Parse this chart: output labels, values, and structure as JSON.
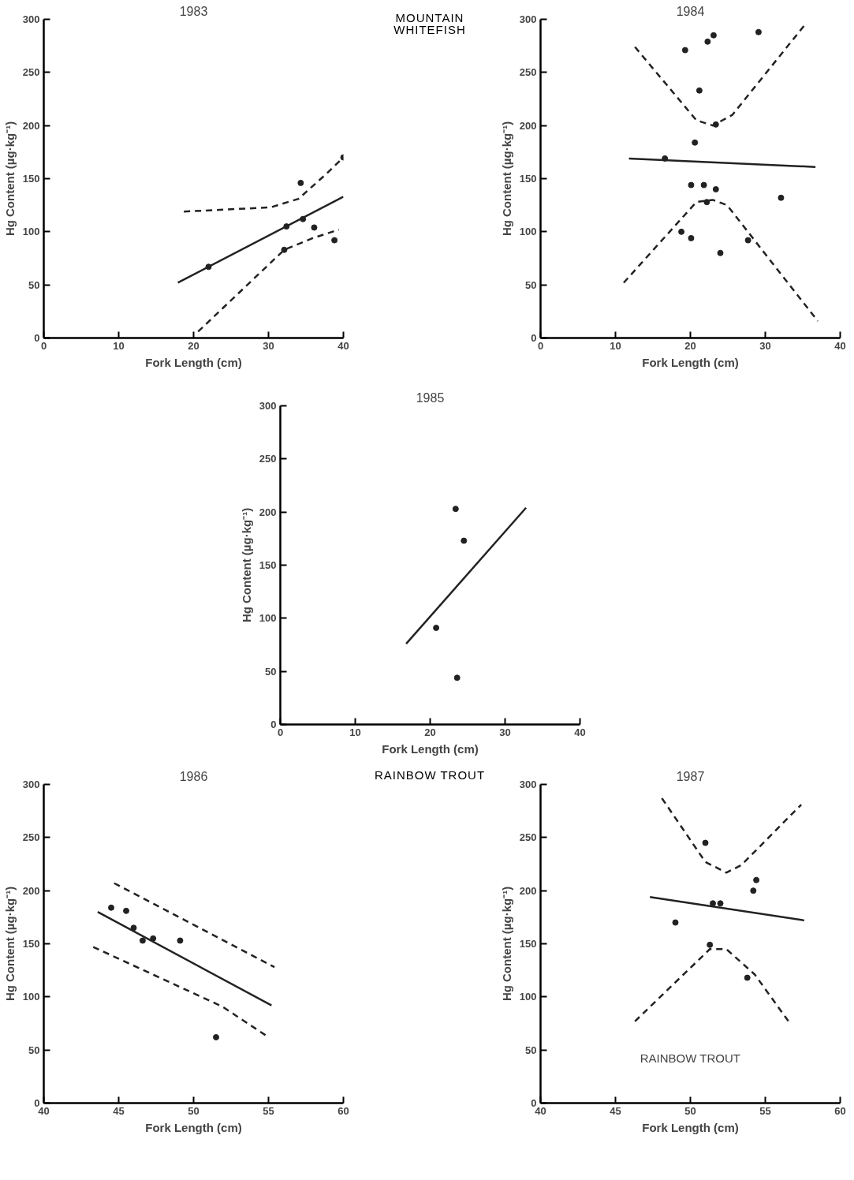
{
  "chart_data": [
    {
      "type": "scatter",
      "title": "1983",
      "xlabel": "Fork Length (cm)",
      "ylabel": "Hg Content (µg·kg⁻¹)",
      "annotations": [
        "MOUNTAIN WHITEFISH"
      ],
      "xlim": [
        0,
        40
      ],
      "ylim": [
        0,
        300
      ],
      "xticks": [
        0,
        10,
        20,
        30,
        40
      ],
      "yticks": [
        0,
        50,
        100,
        150,
        200,
        250,
        300
      ],
      "grid": false,
      "marker": "circle",
      "series": [
        {
          "color": "#222222",
          "x": [
            22,
            32.4,
            34.3,
            34.6,
            32.1,
            36.1,
            38.8,
            40
          ],
          "values": [
            67,
            105,
            146,
            112,
            83,
            104,
            92,
            170
          ]
        },
        {
          "type": "line",
          "line_style": "solid",
          "marker": "none",
          "color": "#222222",
          "x": [
            17.9,
            40
          ],
          "values": [
            52,
            133
          ]
        },
        {
          "type": "line",
          "line_style": "dashed",
          "marker": "none",
          "color": "#222222",
          "x": [
            18.7,
            30.3,
            34,
            37.8,
            40
          ],
          "values": [
            119,
            123,
            131,
            155,
            170
          ]
        },
        {
          "type": "line",
          "line_style": "dashed",
          "marker": "none",
          "color": "#222222",
          "x": [
            20.6,
            32.1,
            35.9,
            39.4
          ],
          "values": [
            6,
            83,
            94,
            102
          ]
        }
      ]
    },
    {
      "type": "scatter",
      "title": "1984",
      "xlabel": "Fork Length (cm)",
      "ylabel": "Hg Content (µg·kg⁻¹)",
      "xlim": [
        0,
        40
      ],
      "ylim": [
        0,
        300
      ],
      "xticks": [
        0,
        10,
        20,
        30,
        40
      ],
      "yticks": [
        0,
        50,
        100,
        150,
        200,
        250,
        300
      ],
      "grid": false,
      "marker": "circle",
      "series": [
        {
          "color": "#222222",
          "x": [
            19.3,
            22.3,
            23.1,
            29.1,
            21.2,
            23.4,
            20.6,
            16.6,
            20.1,
            21.8,
            23.4,
            22.2,
            32.1,
            18.8,
            20.1,
            24.0,
            27.7
          ],
          "values": [
            271,
            279,
            285,
            288,
            233,
            201,
            184,
            169,
            144,
            144,
            140,
            128,
            132,
            100,
            94,
            80,
            92
          ]
        },
        {
          "type": "line",
          "line_style": "solid",
          "marker": "none",
          "color": "#222222",
          "x": [
            11.8,
            36.7
          ],
          "values": [
            169,
            161
          ]
        },
        {
          "type": "line",
          "line_style": "dashed",
          "marker": "none",
          "color": "#222222",
          "x": [
            12.6,
            20.8,
            23,
            25.6,
            35.3
          ],
          "values": [
            274,
            205,
            200,
            210,
            295
          ]
        },
        {
          "type": "line",
          "line_style": "dashed",
          "marker": "none",
          "color": "#222222",
          "x": [
            11.1,
            20.8,
            23,
            24.9,
            37
          ],
          "values": [
            52,
            128,
            130,
            125,
            16
          ]
        }
      ]
    },
    {
      "type": "scatter",
      "title": "1985",
      "xlabel": "Fork Length (cm)",
      "ylabel": "Hg Content (µg·kg⁻¹)",
      "xlim": [
        0,
        40
      ],
      "ylim": [
        0,
        300
      ],
      "xticks": [
        0,
        10,
        20,
        30,
        40
      ],
      "yticks": [
        0,
        50,
        100,
        150,
        200,
        250,
        300
      ],
      "grid": false,
      "marker": "circle",
      "series": [
        {
          "color": "#222222",
          "x": [
            23.4,
            24.5,
            20.8,
            23.6
          ],
          "values": [
            203,
            173,
            91,
            44
          ]
        },
        {
          "type": "line",
          "line_style": "solid",
          "marker": "none",
          "color": "#222222",
          "x": [
            16.8,
            32.8
          ],
          "values": [
            76,
            204
          ]
        }
      ]
    },
    {
      "type": "scatter",
      "title": "1986",
      "xlabel": "Fork Length (cm)",
      "ylabel": "Hg Content (µg·kg⁻¹)",
      "annotations": [
        "RAINBOW TROUT"
      ],
      "xlim": [
        40,
        60
      ],
      "ylim": [
        0,
        300
      ],
      "xticks": [
        40,
        45,
        50,
        55,
        60
      ],
      "yticks": [
        0,
        50,
        100,
        150,
        200,
        250,
        300
      ],
      "grid": false,
      "marker": "circle",
      "series": [
        {
          "color": "#222222",
          "x": [
            44.5,
            45.5,
            46.0,
            46.6,
            47.3,
            49.1,
            51.5
          ],
          "values": [
            184,
            181,
            165,
            153,
            155,
            153,
            62
          ]
        },
        {
          "type": "line",
          "line_style": "solid",
          "marker": "none",
          "color": "#222222",
          "x": [
            43.6,
            55.2
          ],
          "values": [
            180,
            92
          ]
        },
        {
          "type": "line",
          "line_style": "dashed",
          "marker": "none",
          "color": "#222222",
          "x": [
            44.7,
            55.4
          ],
          "values": [
            207,
            128
          ]
        },
        {
          "type": "line",
          "line_style": "dashed",
          "marker": "none",
          "color": "#222222",
          "x": [
            43.3,
            51.9,
            54.9
          ],
          "values": [
            147,
            91,
            63
          ]
        }
      ]
    },
    {
      "type": "scatter",
      "title": "1987",
      "xlabel": "Fork Length (cm)",
      "ylabel": "Hg Content (µg·kg⁻¹)",
      "annotations": [
        "RAINBOW TROUT"
      ],
      "xlim": [
        40,
        60
      ],
      "ylim": [
        0,
        300
      ],
      "xticks": [
        40,
        45,
        50,
        55,
        60
      ],
      "yticks": [
        0,
        50,
        100,
        150,
        200,
        250,
        300
      ],
      "grid": false,
      "marker": "circle",
      "series": [
        {
          "color": "#222222",
          "x": [
            51.0,
            54.4,
            54.2,
            51.5,
            52.0,
            49.0,
            51.3,
            53.8
          ],
          "values": [
            245,
            210,
            200,
            188,
            188,
            170,
            149,
            118
          ]
        },
        {
          "type": "line",
          "line_style": "solid",
          "marker": "none",
          "color": "#222222",
          "x": [
            47.3,
            57.6
          ],
          "values": [
            194,
            172
          ]
        },
        {
          "type": "line",
          "line_style": "dashed",
          "marker": "none",
          "color": "#222222",
          "x": [
            48.1,
            51.0,
            52.4,
            53.4,
            57.4
          ],
          "values": [
            287,
            227,
            217,
            224,
            281
          ]
        },
        {
          "type": "line",
          "line_style": "dashed",
          "marker": "none",
          "color": "#222222",
          "x": [
            46.3,
            51.3,
            52.4,
            54.3,
            56.6
          ],
          "values": [
            77,
            145,
            145,
            121,
            76
          ]
        }
      ]
    }
  ]
}
